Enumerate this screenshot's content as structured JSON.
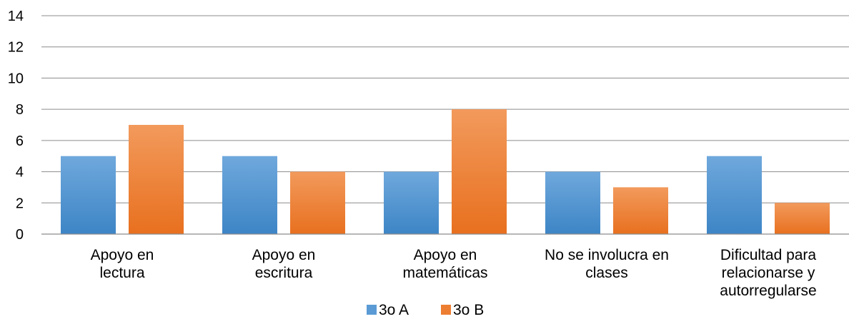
{
  "chart_data": {
    "type": "bar",
    "title": "",
    "xlabel": "",
    "ylabel": "",
    "ylim": [
      0,
      14
    ],
    "yticks": [
      0,
      2,
      4,
      6,
      8,
      10,
      12,
      14
    ],
    "grid": true,
    "legend_position": "bottom",
    "categories": [
      [
        "Apoyo en",
        "lectura"
      ],
      [
        "Apoyo en",
        "escritura"
      ],
      [
        "Apoyo en",
        "matemáticas"
      ],
      [
        "No se involucra en",
        "clases"
      ],
      [
        "Dificultad para",
        "relacionarse y",
        "autorregularse"
      ]
    ],
    "series": [
      {
        "name": "3o A",
        "color": "#5B9BD5",
        "values": [
          5,
          5,
          4,
          4,
          5
        ]
      },
      {
        "name": "3o B",
        "color": "#ED7D31",
        "values": [
          7,
          4,
          8,
          3,
          2
        ]
      }
    ]
  }
}
